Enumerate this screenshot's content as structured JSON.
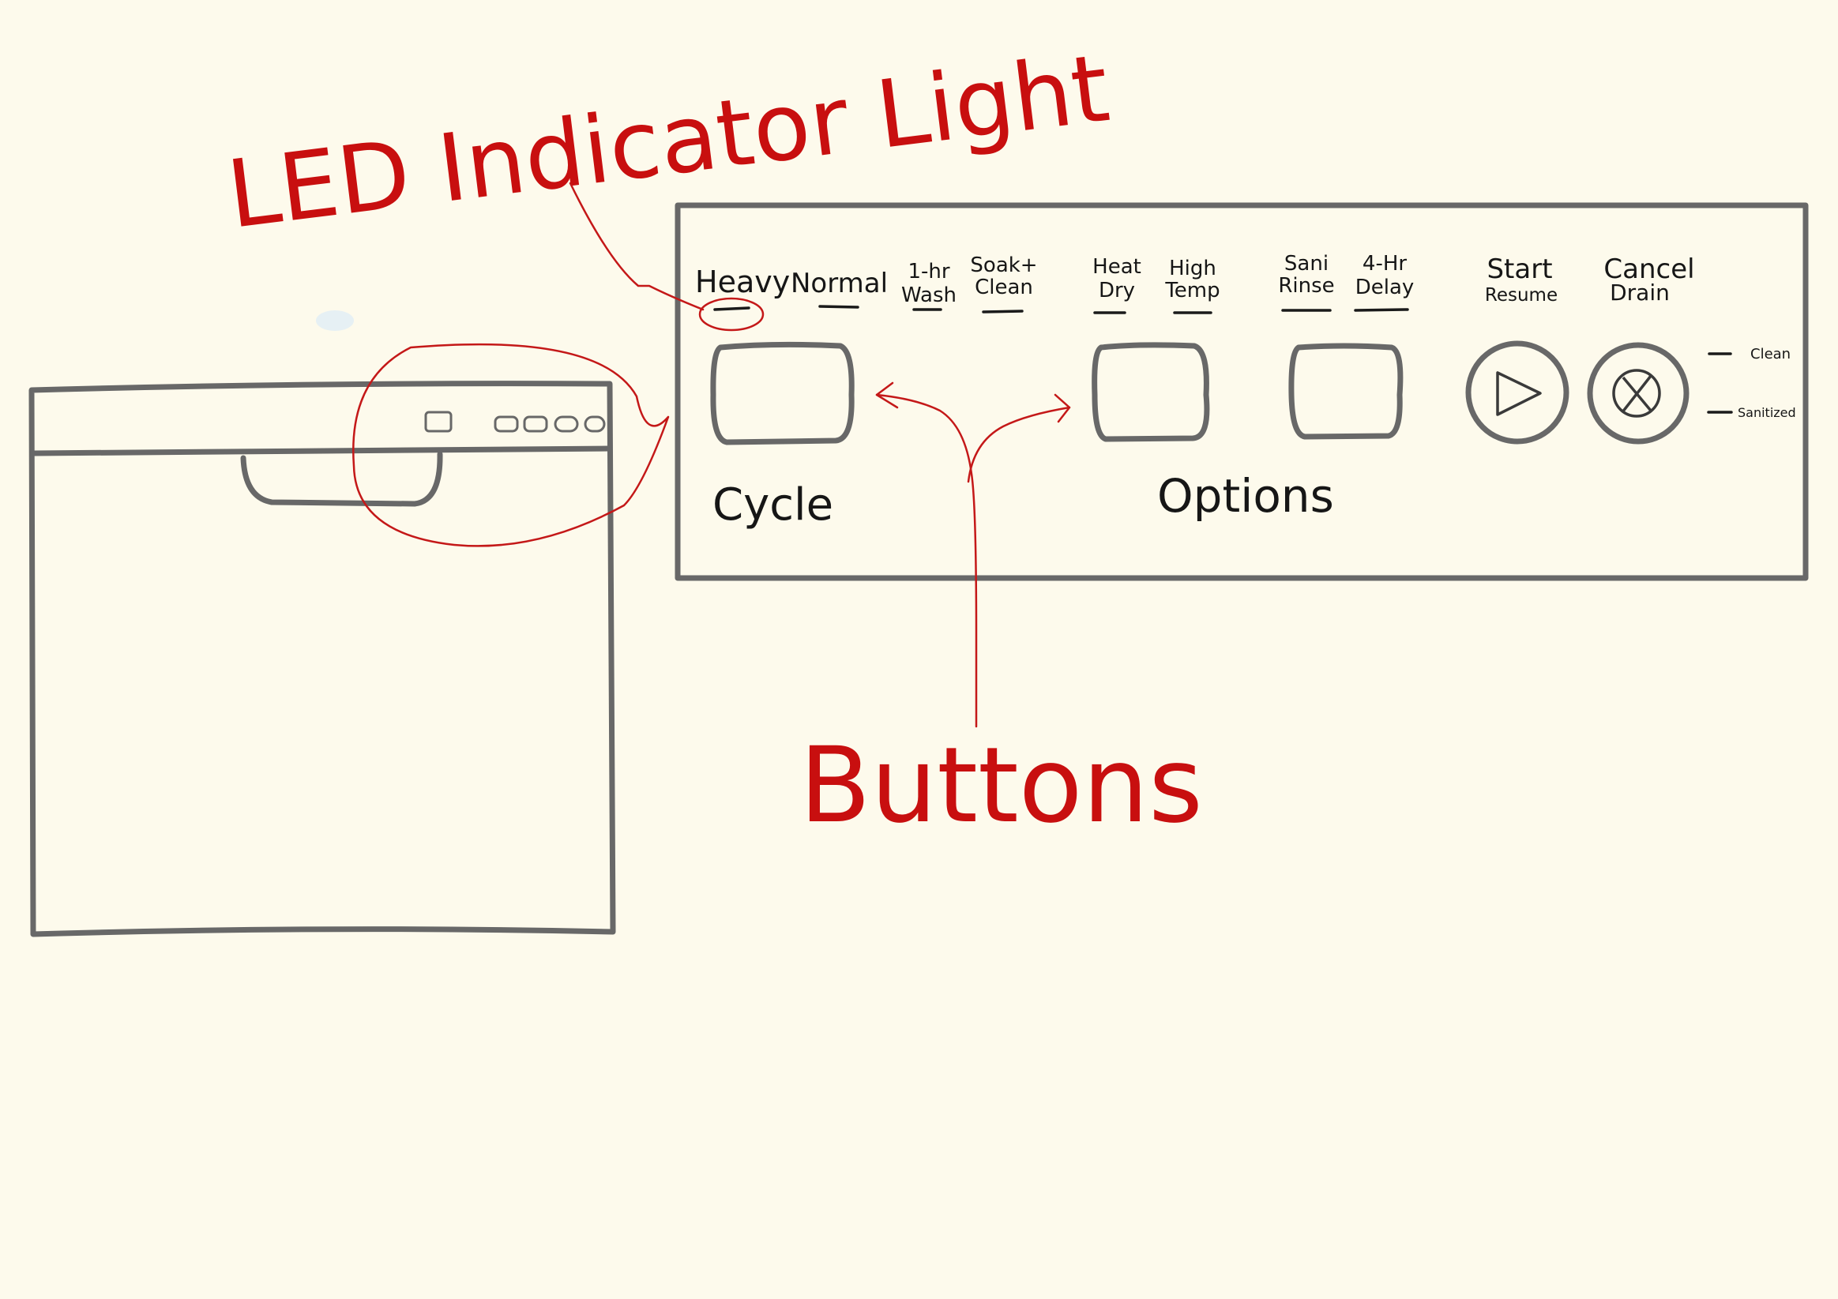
{
  "annotations": {
    "led_indicator": "LED Indicator Light",
    "buttons": "Buttons"
  },
  "panel": {
    "cycles": [
      "Heavy",
      "Normal",
      "1-hr Wash",
      "Soak+ Clean"
    ],
    "options": [
      "Heat Dry",
      "High Temp",
      "Sani Rinse",
      "4-Hr Delay"
    ],
    "start_label": "Start",
    "start_sub": "Resume",
    "cancel_label": "Cancel",
    "cancel_sub": "Drain",
    "cycle_section": "Cycle",
    "options_section": "Options",
    "status_clean": "Clean",
    "status_sanitized": "Sanitized"
  },
  "icons": [
    "play-icon",
    "cancel-x-icon"
  ],
  "colors": {
    "background": "#fdfaec",
    "annotation": "#c80f0f",
    "outline": "#686868",
    "text": "#161616"
  }
}
